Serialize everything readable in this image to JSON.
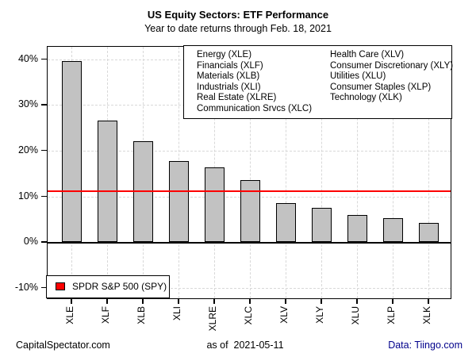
{
  "header": {
    "title": "US Equity Sectors: ETF Performance",
    "subtitle": "Year to date returns through Feb. 18, 2021"
  },
  "chart_data": {
    "type": "bar",
    "title": "US Equity Sectors: ETF Performance",
    "subtitle": "Year to date returns through Feb. 18, 2021",
    "categories": [
      "XLE",
      "XLF",
      "XLB",
      "XLI",
      "XLRE",
      "XLC",
      "XLV",
      "XLY",
      "XLU",
      "XLP",
      "XLK"
    ],
    "values": [
      39.6,
      26.5,
      22.0,
      17.7,
      16.3,
      13.6,
      8.5,
      7.5,
      5.9,
      5.2,
      4.2
    ],
    "ylabel": "",
    "xlabel": "",
    "ylim": [
      -12.6,
      42.8
    ],
    "yticks": [
      -10,
      0,
      10,
      20,
      30,
      40
    ],
    "ytick_labels": [
      "-10%",
      "0%",
      "10%",
      "20%",
      "30%",
      "40%"
    ],
    "grid": true,
    "bar_color": "#c2c2c2",
    "reference_line": {
      "label": "SPDR S&P 500 (SPY)",
      "value": 11.2,
      "color": "#fd0000"
    },
    "legend_position": "top-right"
  },
  "sector_legend": {
    "col1": [
      "Energy (XLE)",
      "Financials (XLF)",
      "Materials (XLB)",
      "Industrials (XLI)",
      "Real Estate (XLRE)",
      "Communication Srvcs (XLC)"
    ],
    "col2": [
      "Health Care (XLV)",
      "Consumer Discretionary (XLY)",
      "Utilities (XLU)",
      "Consumer Staples (XLP)",
      "Technology (XLK)"
    ]
  },
  "spy_legend": {
    "label": "SPDR S&P 500 (SPY)",
    "swatch_color": "#fd0000"
  },
  "footer": {
    "left": "CapitalSpectator.com",
    "center": "as of  2021-05-11",
    "right": "Data: Tiingo.com"
  }
}
